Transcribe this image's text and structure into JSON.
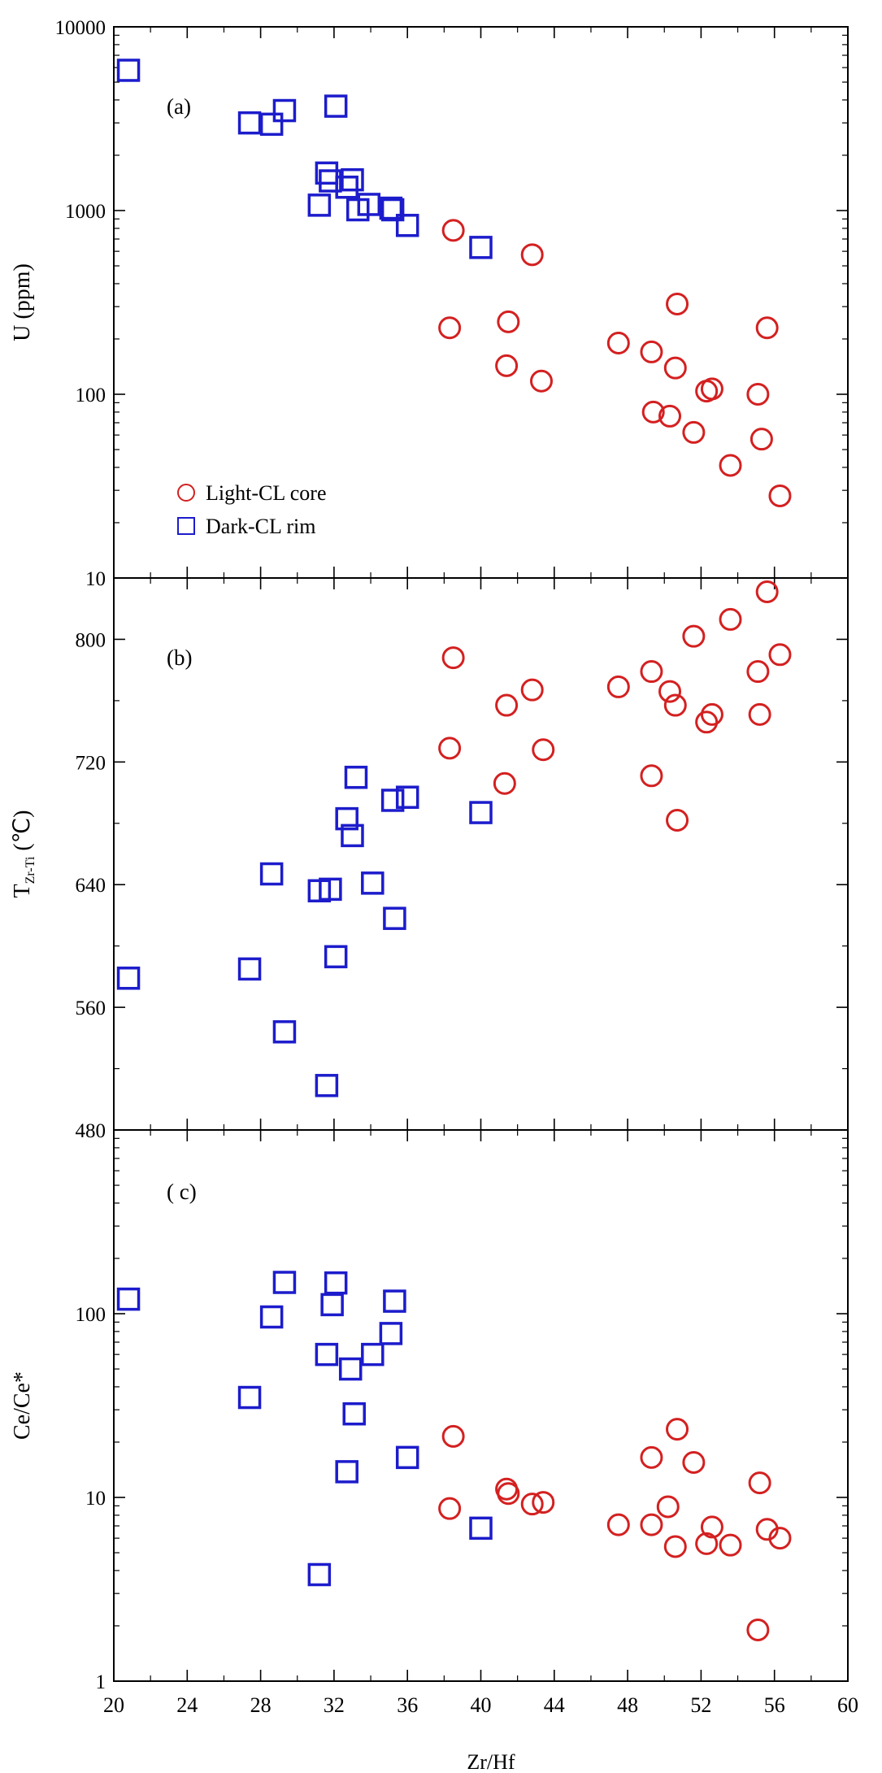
{
  "chart_data": [
    {
      "panel": "a",
      "panel_label": "(a)",
      "type": "scatter",
      "ylabel": "U (ppm)",
      "yscale": "log",
      "ylim": [
        10,
        10000
      ],
      "yticks": [
        "10",
        "100",
        "1000",
        "10000"
      ],
      "legend": {
        "position": "bottom-left",
        "entries": [
          "Light-CL core",
          "Dark-CL rim"
        ]
      },
      "series": [
        {
          "name": "Light-CL core",
          "marker": "circle",
          "color": "#d42020",
          "points": [
            [
              38.5,
              780
            ],
            [
              38.3,
              230
            ],
            [
              41.5,
              248
            ],
            [
              41.4,
              143
            ],
            [
              42.8,
              575
            ],
            [
              43.3,
              118
            ],
            [
              47.5,
              190
            ],
            [
              49.3,
              170
            ],
            [
              49.4,
              80
            ],
            [
              50.3,
              76
            ],
            [
              50.7,
              310
            ],
            [
              50.6,
              139
            ],
            [
              51.6,
              62
            ],
            [
              52.3,
              104
            ],
            [
              52.6,
              107
            ],
            [
              53.6,
              41
            ],
            [
              55.1,
              100
            ],
            [
              55.3,
              57
            ],
            [
              55.6,
              230
            ],
            [
              56.3,
              28
            ]
          ]
        },
        {
          "name": "Dark-CL rim",
          "marker": "square",
          "color": "#1c1ccc",
          "points": [
            [
              20.8,
              5800
            ],
            [
              27.4,
              3000
            ],
            [
              28.6,
              2950
            ],
            [
              29.3,
              3500
            ],
            [
              31.2,
              1070
            ],
            [
              31.6,
              1600
            ],
            [
              31.8,
              1450
            ],
            [
              32.1,
              3700
            ],
            [
              32.7,
              1340
            ],
            [
              33.0,
              1470
            ],
            [
              33.3,
              1010
            ],
            [
              33.9,
              1080
            ],
            [
              35.1,
              1030
            ],
            [
              35.2,
              1010
            ],
            [
              36.0,
              830
            ],
            [
              40.0,
              630
            ]
          ]
        }
      ]
    },
    {
      "panel": "b",
      "panel_label": "(b)",
      "type": "scatter",
      "ylabel_main": "T",
      "ylabel_sub": "Zr-Ti",
      "ylabel_unit": "(℃)",
      "ylim": [
        480,
        840
      ],
      "yticks": [
        "480",
        "560",
        "640",
        "720",
        "800"
      ],
      "series": [
        {
          "name": "Light-CL core",
          "marker": "circle",
          "color": "#d42020",
          "points": [
            [
              38.5,
              788
            ],
            [
              38.3,
              729
            ],
            [
              41.4,
              757
            ],
            [
              41.3,
              706
            ],
            [
              42.8,
              767
            ],
            [
              43.4,
              728
            ],
            [
              47.5,
              769
            ],
            [
              49.3,
              779
            ],
            [
              49.3,
              711
            ],
            [
              50.3,
              766
            ],
            [
              50.6,
              757
            ],
            [
              50.7,
              682
            ],
            [
              51.6,
              802
            ],
            [
              52.3,
              746
            ],
            [
              52.6,
              751
            ],
            [
              53.6,
              813
            ],
            [
              55.1,
              779
            ],
            [
              55.2,
              751
            ],
            [
              55.6,
              831
            ],
            [
              56.3,
              790
            ]
          ]
        },
        {
          "name": "Dark-CL rim",
          "marker": "square",
          "color": "#1c1ccc",
          "points": [
            [
              20.8,
              579
            ],
            [
              27.4,
              585
            ],
            [
              28.6,
              647
            ],
            [
              29.3,
              544
            ],
            [
              31.2,
              636
            ],
            [
              31.6,
              509
            ],
            [
              31.8,
              637
            ],
            [
              32.1,
              593
            ],
            [
              32.7,
              683
            ],
            [
              33.0,
              672
            ],
            [
              33.2,
              710
            ],
            [
              34.1,
              641
            ],
            [
              35.2,
              695
            ],
            [
              35.3,
              618
            ],
            [
              36.0,
              697
            ],
            [
              40.0,
              687
            ]
          ]
        }
      ]
    },
    {
      "panel": "c",
      "panel_label": "( c)",
      "type": "scatter",
      "xlabel": "Zr/Hf",
      "xlim": [
        20,
        60
      ],
      "xticks": [
        "20",
        "24",
        "28",
        "32",
        "36",
        "40",
        "44",
        "48",
        "52",
        "56",
        "60"
      ],
      "ylabel": "Ce/Ce*",
      "yscale": "log",
      "ylim": [
        1,
        1000
      ],
      "yticks": [
        "1",
        "10",
        "100"
      ],
      "series": [
        {
          "name": "Light-CL core",
          "marker": "circle",
          "color": "#d42020",
          "points": [
            [
              38.5,
              21.5
            ],
            [
              38.3,
              8.7
            ],
            [
              41.4,
              11.1
            ],
            [
              41.5,
              10.5
            ],
            [
              42.8,
              9.2
            ],
            [
              43.4,
              9.4
            ],
            [
              47.5,
              7.1
            ],
            [
              49.3,
              16.5
            ],
            [
              49.3,
              7.1
            ],
            [
              50.2,
              8.9
            ],
            [
              50.7,
              23.5
            ],
            [
              50.6,
              5.4
            ],
            [
              51.6,
              15.5
            ],
            [
              52.3,
              5.6
            ],
            [
              52.6,
              6.9
            ],
            [
              53.6,
              5.5
            ],
            [
              55.1,
              1.9
            ],
            [
              55.2,
              12.0
            ],
            [
              55.6,
              6.7
            ],
            [
              56.3,
              6.0
            ]
          ]
        },
        {
          "name": "Dark-CL rim",
          "marker": "square",
          "color": "#1c1ccc",
          "points": [
            [
              20.8,
              120
            ],
            [
              27.4,
              35
            ],
            [
              28.6,
              96
            ],
            [
              29.3,
              148
            ],
            [
              31.2,
              3.8
            ],
            [
              31.6,
              60
            ],
            [
              31.9,
              112
            ],
            [
              32.1,
              147
            ],
            [
              32.7,
              13.8
            ],
            [
              32.9,
              50
            ],
            [
              33.1,
              28.5
            ],
            [
              34.1,
              60
            ],
            [
              35.1,
              78
            ],
            [
              35.3,
              117
            ],
            [
              36.0,
              16.5
            ],
            [
              40.0,
              6.8
            ]
          ]
        }
      ]
    }
  ]
}
